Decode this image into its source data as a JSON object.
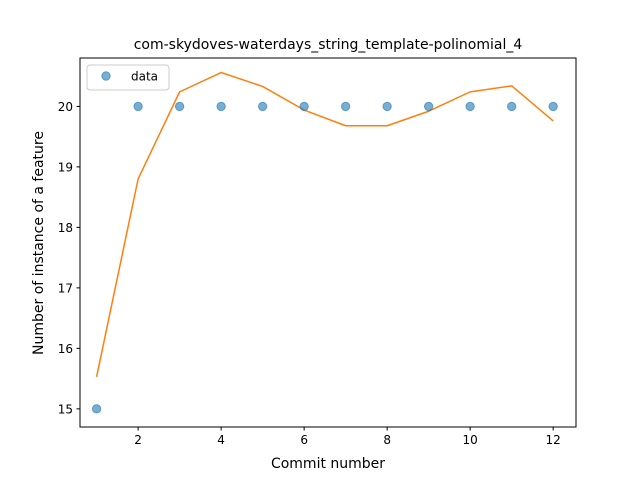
{
  "chart_data": {
    "type": "scatter",
    "title": "com-skydoves-waterdays_string_template-polinomial_4",
    "xlabel": "Commit number",
    "ylabel": "Number of instance of a feature",
    "xlim": [
      0.6,
      12.55
    ],
    "ylim": [
      14.7,
      20.8
    ],
    "xticks": [
      2,
      4,
      6,
      8,
      10,
      12
    ],
    "yticks": [
      15,
      16,
      17,
      18,
      19,
      20
    ],
    "legend": {
      "placement": "top-left"
    },
    "series": [
      {
        "name": "data",
        "kind": "scatter",
        "color": "#1f77b4",
        "x": [
          1,
          2,
          3,
          4,
          5,
          6,
          7,
          8,
          9,
          10,
          11,
          12
        ],
        "y": [
          15,
          20,
          20,
          20,
          20,
          20,
          20,
          20,
          20,
          20,
          20,
          20
        ]
      },
      {
        "kind": "line",
        "color": "#ff7f0e",
        "x": [
          1,
          2,
          3,
          4,
          5,
          6,
          7,
          8,
          9,
          10,
          11,
          12
        ],
        "y": [
          15.53,
          18.8,
          20.24,
          20.56,
          20.33,
          19.94,
          19.68,
          19.68,
          19.92,
          20.24,
          20.34,
          19.76
        ]
      }
    ]
  }
}
